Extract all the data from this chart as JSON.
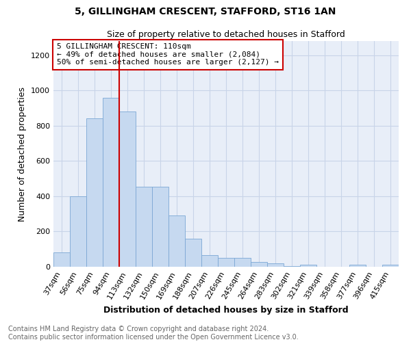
{
  "title1": "5, GILLINGHAM CRESCENT, STAFFORD, ST16 1AN",
  "title2": "Size of property relative to detached houses in Stafford",
  "xlabel": "Distribution of detached houses by size in Stafford",
  "ylabel": "Number of detached properties",
  "categories": [
    "37sqm",
    "56sqm",
    "75sqm",
    "94sqm",
    "113sqm",
    "132sqm",
    "150sqm",
    "169sqm",
    "188sqm",
    "207sqm",
    "226sqm",
    "245sqm",
    "264sqm",
    "283sqm",
    "302sqm",
    "321sqm",
    "339sqm",
    "358sqm",
    "377sqm",
    "396sqm",
    "415sqm"
  ],
  "values": [
    80,
    400,
    840,
    960,
    880,
    455,
    455,
    290,
    160,
    65,
    50,
    50,
    28,
    18,
    5,
    10,
    0,
    0,
    10,
    0,
    10
  ],
  "bar_color": "#c6d9f0",
  "bar_edge_color": "#7ba7d4",
  "grid_color": "#c8d4e8",
  "vline_color": "#cc0000",
  "vline_x": 3.5,
  "annotation_text": "5 GILLINGHAM CRESCENT: 110sqm\n← 49% of detached houses are smaller (2,084)\n50% of semi-detached houses are larger (2,127) →",
  "annotation_box_color": "#ffffff",
  "annotation_box_edge_color": "#cc0000",
  "ylim": [
    0,
    1280
  ],
  "yticks": [
    0,
    200,
    400,
    600,
    800,
    1000,
    1200
  ],
  "footnote": "Contains HM Land Registry data © Crown copyright and database right 2024.\nContains public sector information licensed under the Open Government Licence v3.0.",
  "background_color": "#e8eef8",
  "fig_background": "#ffffff",
  "title1_fontsize": 10,
  "title2_fontsize": 9,
  "xlabel_fontsize": 9,
  "ylabel_fontsize": 9,
  "tick_fontsize": 8,
  "footnote_fontsize": 7,
  "annot_fontsize": 8
}
